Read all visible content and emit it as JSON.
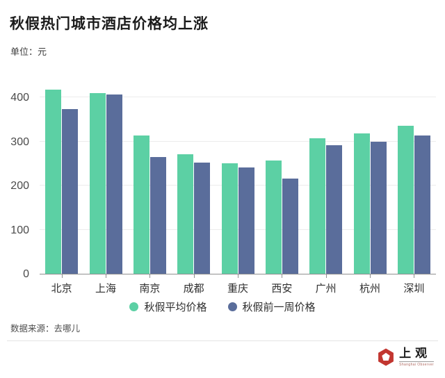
{
  "title": "秋假热门城市酒店价格均上涨",
  "subtitle": "单位：元",
  "source": "数据来源：去哪儿",
  "logo": {
    "name": "shanghai-observer",
    "cn_text": "上观",
    "en_text": "Shanghai Observer",
    "icon_color": "#c23630"
  },
  "colors": {
    "series_avg": "#5cd0a4",
    "series_prev_week": "#5a6d9b",
    "gridline": "#ececec",
    "axis": "#8f8f8f"
  },
  "chart_data": {
    "type": "bar",
    "categories": [
      "北京",
      "上海",
      "南京",
      "成都",
      "重庆",
      "西安",
      "广州",
      "杭州",
      "深圳"
    ],
    "series": [
      {
        "name": "秋假平均价格",
        "color": "#5cd0a4",
        "values": [
          418,
          410,
          314,
          271,
          251,
          257,
          308,
          318,
          335
        ]
      },
      {
        "name": "秋假前一周价格",
        "color": "#5a6d9b",
        "values": [
          373,
          406,
          265,
          252,
          241,
          216,
          291,
          300,
          313
        ]
      }
    ],
    "title": "秋假热门城市酒店价格均上涨",
    "xlabel": "",
    "ylabel": "元",
    "yticks": [
      0,
      100,
      200,
      300,
      400
    ],
    "ylim": [
      0,
      435
    ],
    "grid": true,
    "legend_position": "bottom"
  }
}
